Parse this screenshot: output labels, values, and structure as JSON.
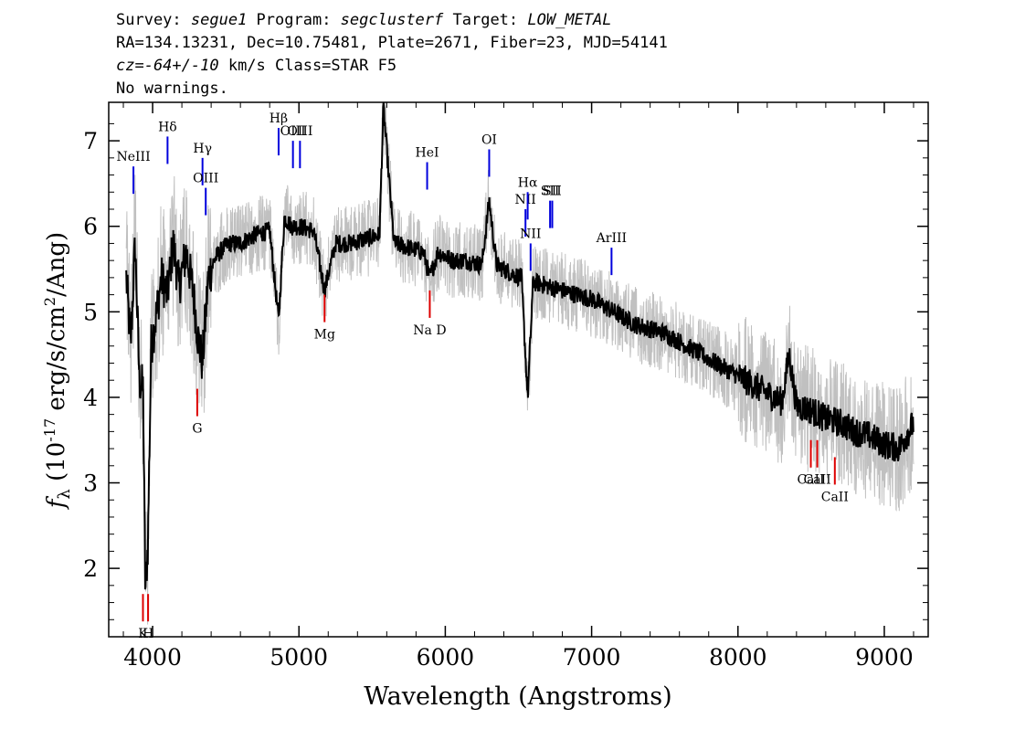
{
  "header": {
    "line1": {
      "survey_label": "Survey: ",
      "survey": "segue1",
      "program_label": " Program: ",
      "program": "segclusterf",
      "target_label": " Target: ",
      "target": "LOW_METAL"
    },
    "line2": "RA=134.13231, Dec=10.75481, Plate=2671, Fiber=23, MJD=54141",
    "line3": {
      "cz": "cz=-64+/-10",
      "rest": " km/s Class=STAR F5"
    },
    "line4": "No warnings."
  },
  "chart_data": {
    "type": "line",
    "xlabel": "Wavelength (Angstroms)",
    "ylabel": "f_λ (10^-17 erg/s/cm^2/Ang)",
    "xlim": [
      3700,
      9300
    ],
    "ylim": [
      1.2,
      7.45
    ],
    "x_ticks": [
      4000,
      5000,
      6000,
      7000,
      8000,
      9000
    ],
    "y_ticks": [
      2,
      3,
      4,
      5,
      6,
      7
    ],
    "grid": false,
    "colors": {
      "flux": "#000000",
      "error_band": "#c0c0c0",
      "emission": "#0000dd",
      "absorption": "#dd0000"
    },
    "series": [
      {
        "style": "flux",
        "x": [
          3820,
          3850,
          3880,
          3910,
          3935,
          3950,
          3968,
          3990,
          4020,
          4060,
          4101,
          4140,
          4180,
          4230,
          4280,
          4310,
          4340,
          4380,
          4420,
          4460,
          4520,
          4600,
          4700,
          4800,
          4861,
          4900,
          4950,
          5000,
          5100,
          5175,
          5250,
          5350,
          5450,
          5550,
          5577,
          5650,
          5750,
          5850,
          5893,
          5950,
          6050,
          6150,
          6250,
          6300,
          6350,
          6450,
          6520,
          6563,
          6600,
          6700,
          6800,
          6900,
          7000,
          7100,
          7200,
          7300,
          7400,
          7500,
          7600,
          7700,
          7800,
          7900,
          8000,
          8100,
          8200,
          8300,
          8350,
          8400,
          8500,
          8600,
          8700,
          8800,
          8900,
          9000,
          9100,
          9200
        ],
        "y": [
          5.4,
          4.6,
          5.8,
          4.2,
          4.1,
          1.7,
          2.3,
          4.6,
          4.9,
          5.4,
          5.2,
          5.8,
          5.3,
          5.7,
          5.2,
          4.7,
          4.4,
          5.4,
          5.6,
          5.7,
          5.8,
          5.8,
          5.9,
          5.95,
          4.9,
          6.1,
          6.0,
          6.0,
          5.95,
          5.25,
          5.8,
          5.8,
          5.85,
          5.9,
          7.4,
          5.8,
          5.75,
          5.7,
          5.4,
          5.7,
          5.6,
          5.6,
          5.55,
          6.3,
          5.55,
          5.45,
          5.4,
          4.0,
          5.35,
          5.3,
          5.25,
          5.2,
          5.15,
          5.05,
          4.95,
          4.85,
          4.8,
          4.75,
          4.65,
          4.55,
          4.45,
          4.35,
          4.25,
          4.15,
          4.05,
          3.95,
          4.5,
          3.9,
          3.85,
          3.75,
          3.7,
          3.6,
          3.55,
          3.45,
          3.4,
          3.7
        ]
      }
    ],
    "line_markers": [
      {
        "label": "NeIII",
        "type": "emission",
        "wavelength": 3869,
        "y": 6.7
      },
      {
        "label": "Hδ",
        "type": "emission",
        "wavelength": 4102,
        "y": 7.05
      },
      {
        "label": "Hγ",
        "type": "emission",
        "wavelength": 4341,
        "y": 6.8
      },
      {
        "label": "OIII",
        "type": "emission",
        "wavelength": 4363,
        "y": 6.45
      },
      {
        "label": "Hβ",
        "type": "emission",
        "wavelength": 4861,
        "y": 7.15
      },
      {
        "label": "OIII",
        "type": "emission",
        "wavelength": 4959,
        "y": 7.0
      },
      {
        "label": "OIII",
        "type": "emission",
        "wavelength": 5007,
        "y": 7.0
      },
      {
        "label": "HeI",
        "type": "emission",
        "wavelength": 5876,
        "y": 6.75
      },
      {
        "label": "OI",
        "type": "emission",
        "wavelength": 6300,
        "y": 6.9
      },
      {
        "label": "NII",
        "type": "emission",
        "wavelength": 6548,
        "y": 6.2
      },
      {
        "label": "Hα",
        "type": "emission",
        "wavelength": 6563,
        "y": 6.4
      },
      {
        "label": "NII",
        "type": "emission",
        "wavelength": 6583,
        "y": 5.8
      },
      {
        "label": "SII",
        "type": "emission",
        "wavelength": 6716,
        "y": 6.3
      },
      {
        "label": "SII",
        "type": "emission",
        "wavelength": 6731,
        "y": 6.3
      },
      {
        "label": "ArIII",
        "type": "emission",
        "wavelength": 7136,
        "y": 5.75
      },
      {
        "label": "K",
        "type": "absorption",
        "wavelength": 3934,
        "y": 1.7
      },
      {
        "label": "H",
        "type": "absorption",
        "wavelength": 3969,
        "y": 1.7
      },
      {
        "label": "G",
        "type": "absorption",
        "wavelength": 4305,
        "y": 4.1
      },
      {
        "label": "Mg",
        "type": "absorption",
        "wavelength": 5175,
        "y": 5.2
      },
      {
        "label": "Na D",
        "type": "absorption",
        "wavelength": 5894,
        "y": 5.25
      },
      {
        "label": "CaII",
        "type": "absorption",
        "wavelength": 8498,
        "y": 3.5
      },
      {
        "label": "CaII",
        "type": "absorption",
        "wavelength": 8542,
        "y": 3.5
      },
      {
        "label": "CaII",
        "type": "absorption",
        "wavelength": 8662,
        "y": 3.3
      }
    ]
  }
}
